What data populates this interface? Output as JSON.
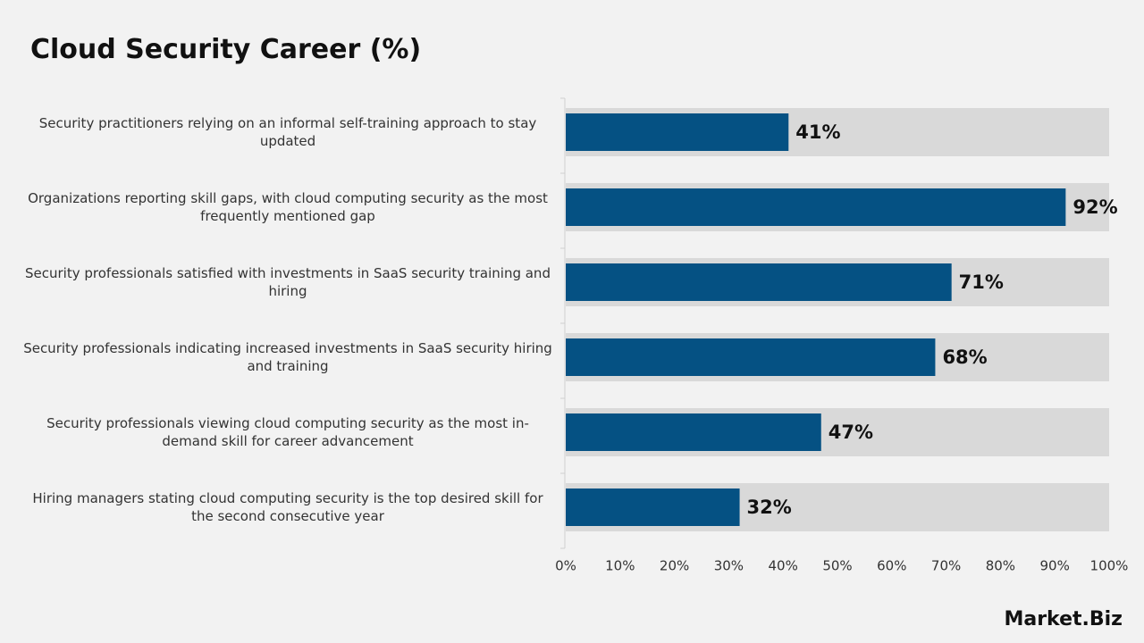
{
  "chart_data": {
    "type": "bar",
    "orientation": "horizontal",
    "title": "Cloud Security Career (%)",
    "categories": [
      "Security practitioners relying on an informal self-training approach to stay updated",
      "Organizations reporting skill gaps, with cloud computing security as the most frequently mentioned gap",
      "Security professionals satisfied with investments in SaaS security training and hiring",
      "Security professionals indicating increased investments in SaaS security hiring and training",
      "Security professionals viewing cloud computing security as the most in-demand skill for career advancement",
      "Hiring managers stating cloud computing security is the top desired skill for the second consecutive year"
    ],
    "values": [
      41,
      92,
      71,
      68,
      47,
      32
    ],
    "value_labels": [
      "41%",
      "92%",
      "71%",
      "68%",
      "47%",
      "32%"
    ],
    "color": "#055183",
    "track_color": "#d9d9d9",
    "xlim": [
      0,
      100
    ],
    "xticks": [
      {
        "value": 0,
        "label": "0%"
      },
      {
        "value": 10,
        "label": "10%"
      },
      {
        "value": 20,
        "label": "20%"
      },
      {
        "value": 30,
        "label": "30%"
      },
      {
        "value": 40,
        "label": "40%"
      },
      {
        "value": 50,
        "label": "50%"
      },
      {
        "value": 60,
        "label": "60%"
      },
      {
        "value": 70,
        "label": "70%"
      },
      {
        "value": 80,
        "label": "80%"
      },
      {
        "value": 90,
        "label": "90%"
      },
      {
        "value": 100,
        "label": "100%"
      }
    ],
    "grid": false,
    "logo": "Market.Biz"
  }
}
